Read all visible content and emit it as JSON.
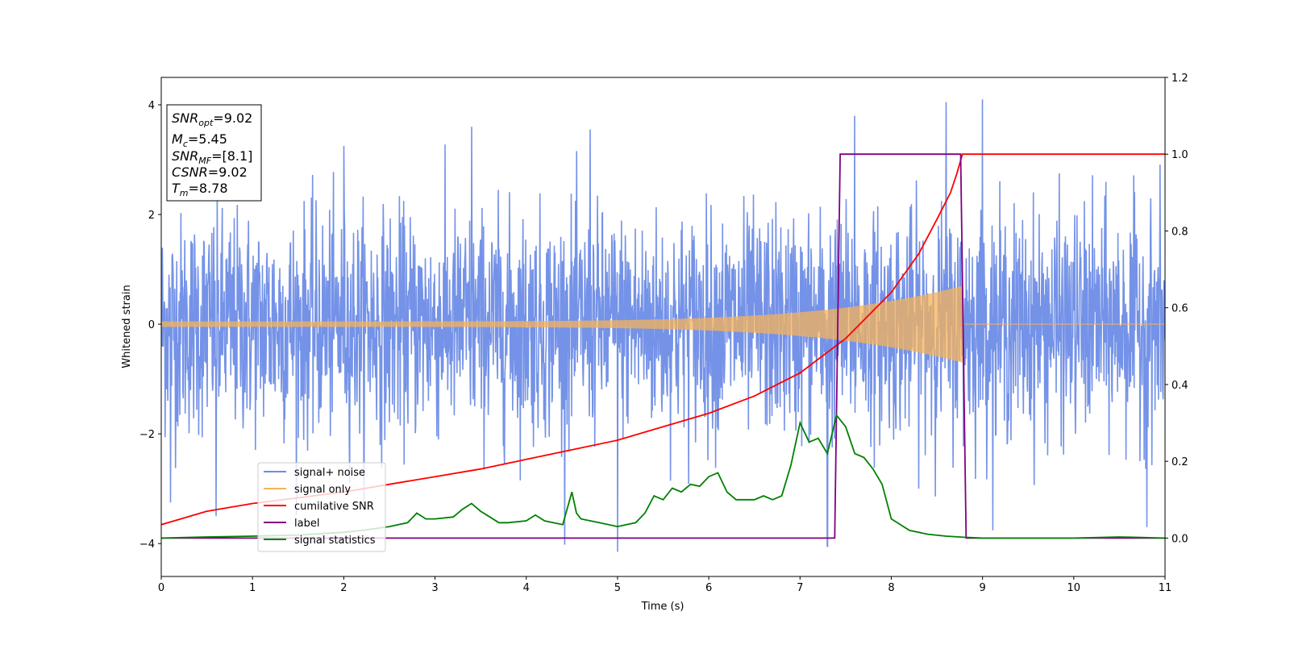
{
  "chart_data": {
    "type": "line",
    "title": "",
    "xlabel": "Time (s)",
    "ylabel": "Whitened strain",
    "y2label": "",
    "xlim": [
      0,
      11
    ],
    "ylim": [
      -4.6,
      4.5
    ],
    "y2lim": [
      -0.1,
      1.2
    ],
    "xticks": [
      0,
      1,
      2,
      3,
      4,
      5,
      6,
      7,
      8,
      9,
      10,
      11
    ],
    "yticks": [
      -4,
      -2,
      0,
      2,
      4
    ],
    "y2ticks": [
      0.0,
      0.2,
      0.4,
      0.6,
      0.8,
      1.0,
      1.2
    ],
    "y2tick_labels": [
      "0.0",
      "0.2",
      "0.4",
      "0.6",
      "0.8",
      "1.0",
      "1.2"
    ],
    "grid": false,
    "legend_position": "lower-left",
    "info_box": {
      "lines": [
        {
          "sym": "SNR",
          "sub": "opt",
          "rest": "=9.02"
        },
        {
          "sym": "M",
          "sub": "c",
          "rest": "=5.45"
        },
        {
          "sym": "SNR",
          "sub": "MF",
          "rest": "=[8.1]"
        },
        {
          "sym": "CSNR",
          "sub": "",
          "rest": "=9.02"
        },
        {
          "sym": "T",
          "sub": "m",
          "rest": "=8.78"
        }
      ]
    },
    "series": [
      {
        "name": "signal+ noise",
        "axis": "left",
        "color": "#6d8ce6",
        "kind": "noise",
        "noise_std": 1.0,
        "spikes": [
          {
            "x": 8.6,
            "y": 4.05
          },
          {
            "x": 9.0,
            "y": 4.1
          },
          {
            "x": 7.6,
            "y": 3.8
          },
          {
            "x": 5.0,
            "y": -4.15
          },
          {
            "x": 7.3,
            "y": -4.05
          },
          {
            "x": 10.8,
            "y": -3.7
          },
          {
            "x": 3.4,
            "y": 3.6
          },
          {
            "x": 4.7,
            "y": 3.55
          },
          {
            "x": 2.0,
            "y": 3.25
          },
          {
            "x": 0.6,
            "y": -3.5
          },
          {
            "x": 0.1,
            "y": -3.25
          }
        ]
      },
      {
        "name": "signal only",
        "axis": "left",
        "color": "#f5b25a",
        "kind": "chirp",
        "amplitude_start": 0.05,
        "amplitude_end": 0.7,
        "t_merge": 8.78
      },
      {
        "name": "cumilative SNR",
        "axis": "right",
        "color": "#ff0000",
        "x": [
          0.0,
          0.5,
          1.0,
          1.5,
          2.0,
          2.5,
          3.0,
          3.5,
          4.0,
          4.5,
          5.0,
          5.5,
          6.0,
          6.5,
          7.0,
          7.5,
          8.0,
          8.3,
          8.5,
          8.65,
          8.72,
          8.78,
          11.0
        ],
        "values": [
          0.035,
          0.07,
          0.09,
          0.105,
          0.12,
          0.14,
          0.16,
          0.18,
          0.205,
          0.23,
          0.255,
          0.29,
          0.325,
          0.37,
          0.43,
          0.52,
          0.64,
          0.74,
          0.83,
          0.9,
          0.95,
          1.0,
          1.0
        ]
      },
      {
        "name": "label",
        "axis": "right",
        "color": "#800080",
        "x": [
          0.0,
          7.38,
          7.44,
          8.76,
          8.82,
          11.0
        ],
        "values": [
          0.0,
          0.0,
          1.0,
          1.0,
          0.0,
          0.0
        ]
      },
      {
        "name": "signal statistics",
        "axis": "right",
        "color": "#008000",
        "x": [
          0.0,
          0.5,
          1.0,
          1.5,
          2.0,
          2.2,
          2.5,
          2.7,
          2.8,
          2.9,
          3.0,
          3.2,
          3.3,
          3.4,
          3.5,
          3.6,
          3.7,
          3.8,
          4.0,
          4.1,
          4.2,
          4.4,
          4.5,
          4.55,
          4.6,
          4.8,
          5.0,
          5.2,
          5.3,
          5.4,
          5.5,
          5.6,
          5.7,
          5.8,
          5.9,
          6.0,
          6.1,
          6.2,
          6.3,
          6.4,
          6.5,
          6.6,
          6.7,
          6.8,
          6.9,
          7.0,
          7.1,
          7.2,
          7.3,
          7.4,
          7.5,
          7.6,
          7.7,
          7.8,
          7.9,
          8.0,
          8.2,
          8.4,
          8.6,
          8.8,
          9.0,
          10.0,
          10.5,
          11.0
        ],
        "values": [
          0.0,
          0.003,
          0.005,
          0.008,
          0.015,
          0.02,
          0.03,
          0.04,
          0.065,
          0.05,
          0.05,
          0.055,
          0.075,
          0.09,
          0.07,
          0.055,
          0.04,
          0.04,
          0.045,
          0.06,
          0.045,
          0.035,
          0.12,
          0.065,
          0.05,
          0.04,
          0.03,
          0.04,
          0.065,
          0.11,
          0.1,
          0.13,
          0.12,
          0.14,
          0.135,
          0.16,
          0.17,
          0.12,
          0.1,
          0.1,
          0.1,
          0.11,
          0.1,
          0.11,
          0.19,
          0.3,
          0.25,
          0.26,
          0.22,
          0.32,
          0.29,
          0.22,
          0.21,
          0.18,
          0.14,
          0.05,
          0.02,
          0.01,
          0.005,
          0.002,
          0.0,
          0.0,
          0.003,
          0.0
        ]
      }
    ]
  }
}
